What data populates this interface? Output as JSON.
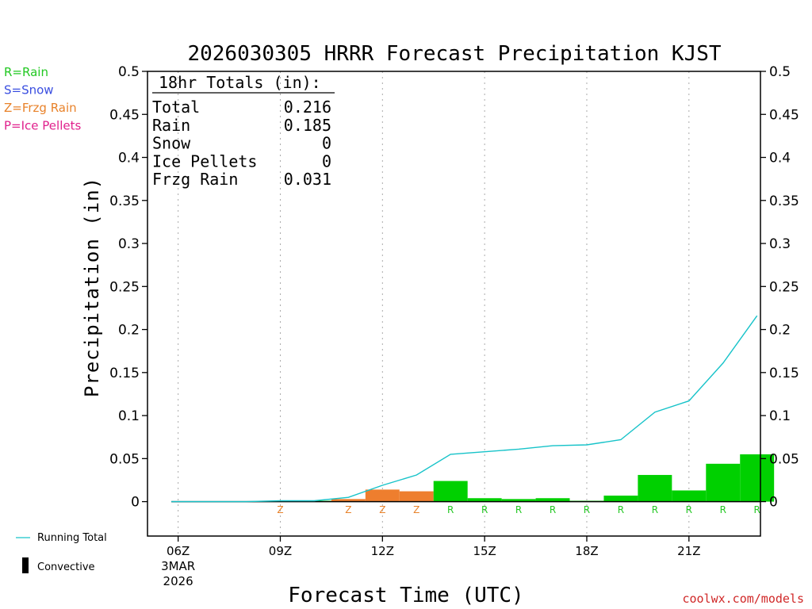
{
  "chart_data": {
    "type": "bar",
    "title": "2026030305 HRRR Forecast Precipitation KJST",
    "ylabel": "Precipitation (in)",
    "xlabel": "Forecast Time (UTC)",
    "ylim": [
      -0.04,
      0.5
    ],
    "y_ticks": [
      0,
      0.05,
      0.1,
      0.15,
      0.2,
      0.25,
      0.3,
      0.35,
      0.4,
      0.45,
      0.5
    ],
    "y_tick_labels": [
      "0",
      "0.05",
      "0.1",
      "0.15",
      "0.2",
      "0.25",
      "0.3",
      "0.35",
      "0.4",
      "0.45",
      "0.5"
    ],
    "xlim_hours": [
      5.1,
      23.1
    ],
    "x_ticks": [
      {
        "hour": 6,
        "label": "06Z",
        "sublabel1": "3MAR",
        "sublabel2": "2026"
      },
      {
        "hour": 9,
        "label": "09Z"
      },
      {
        "hour": 12,
        "label": "12Z"
      },
      {
        "hour": 15,
        "label": "15Z"
      },
      {
        "hour": 18,
        "label": "18Z"
      },
      {
        "hour": 21,
        "label": "21Z"
      }
    ],
    "hourly": [
      {
        "hour": 6,
        "type": "",
        "value": 0
      },
      {
        "hour": 7,
        "type": "",
        "value": 0
      },
      {
        "hour": 8,
        "type": "",
        "value": 0
      },
      {
        "hour": 9,
        "type": "Z",
        "value": 0
      },
      {
        "hour": 10,
        "type": "",
        "value": 0.001
      },
      {
        "hour": 11,
        "type": "Z",
        "value": 0.003
      },
      {
        "hour": 12,
        "type": "Z",
        "value": 0.014
      },
      {
        "hour": 13,
        "type": "Z",
        "value": 0.012
      },
      {
        "hour": 14,
        "type": "R",
        "value": 0.024
      },
      {
        "hour": 15,
        "type": "R",
        "value": 0.004
      },
      {
        "hour": 16,
        "type": "R",
        "value": 0.003
      },
      {
        "hour": 17,
        "type": "R",
        "value": 0.004
      },
      {
        "hour": 18,
        "type": "R",
        "value": 0.001
      },
      {
        "hour": 19,
        "type": "R",
        "value": 0.007
      },
      {
        "hour": 20,
        "type": "R",
        "value": 0.031
      },
      {
        "hour": 21,
        "type": "R",
        "value": 0.013
      },
      {
        "hour": 22,
        "type": "R",
        "value": 0.044
      },
      {
        "hour": 23,
        "type": "R",
        "value": 0.055
      }
    ],
    "running_total": {
      "name": "Running Total",
      "points": [
        [
          5.8,
          0
        ],
        [
          6,
          0
        ],
        [
          7,
          0
        ],
        [
          8,
          0
        ],
        [
          9,
          0.001
        ],
        [
          10,
          0.001
        ],
        [
          11,
          0.005
        ],
        [
          12,
          0.019
        ],
        [
          13,
          0.031
        ],
        [
          14,
          0.055
        ],
        [
          15,
          0.058
        ],
        [
          16,
          0.061
        ],
        [
          17,
          0.065
        ],
        [
          18,
          0.066
        ],
        [
          19,
          0.072
        ],
        [
          20,
          0.104
        ],
        [
          21,
          0.117
        ],
        [
          22,
          0.161
        ],
        [
          23,
          0.216
        ]
      ]
    },
    "totals_box": {
      "heading": "18hr Totals (in):",
      "rows": [
        {
          "label": "Total",
          "value": "0.216"
        },
        {
          "label": "Rain",
          "value": "0.185"
        },
        {
          "label": "Snow",
          "value": "0"
        },
        {
          "label": "Ice Pellets",
          "value": "0"
        },
        {
          "label": "Frzg Rain",
          "value": "0.031"
        }
      ]
    },
    "type_legend": [
      {
        "text": "R=Rain",
        "color": "#22c822"
      },
      {
        "text": "S=Snow",
        "color": "#3a4ee0"
      },
      {
        "text": "Z=Frzg Rain",
        "color": "#e8822a"
      },
      {
        "text": "P=Ice Pellets",
        "color": "#e0208c"
      }
    ],
    "bottom_legend": {
      "line": "Running Total",
      "bar": "Convective"
    },
    "credit": "coolwx.com/models",
    "colors": {
      "rain": "#00d000",
      "frzg": "#ee7e2e",
      "snow": "#3a4ee0",
      "ice": "#e0208c",
      "running_total": "#17c3c9",
      "credit": "#d02828",
      "rain_label": "#22c822",
      "frzg_label": "#e8822a"
    }
  }
}
